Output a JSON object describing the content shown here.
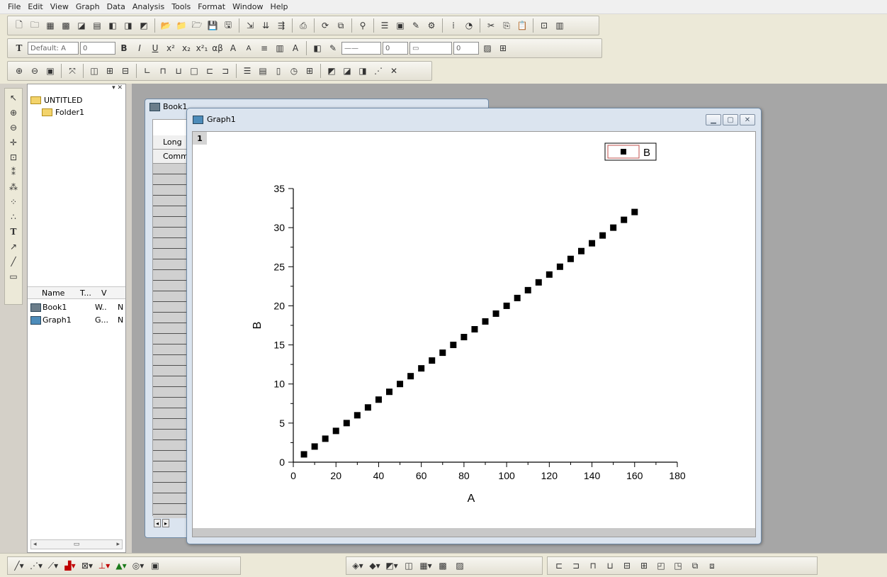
{
  "menu": [
    "File",
    "Edit",
    "View",
    "Graph",
    "Data",
    "Analysis",
    "Tools",
    "Format",
    "Window",
    "Help"
  ],
  "format_toolbar": {
    "font_combo": "Default: A",
    "size_combo": "0",
    "line_width_combo": "0",
    "border_combo": "0",
    "text_buttons": [
      "B",
      "I",
      "U",
      "x²",
      "x₂",
      "x²₁",
      "αβ",
      "A",
      "A"
    ]
  },
  "explorer": {
    "root": "UNTITLED",
    "folder": "Folder1",
    "columns": [
      "Name",
      "T...",
      "V"
    ],
    "items": [
      {
        "name": "Book1",
        "type": "W..",
        "view": "N"
      },
      {
        "name": "Graph1",
        "type": "G...",
        "view": "N"
      }
    ]
  },
  "book_window": {
    "title": "Book1",
    "row_labels": [
      "Long",
      "Comm"
    ]
  },
  "graph_window": {
    "title": "Graph1",
    "layer_label": "1",
    "legend_label": "B"
  },
  "chart_data": {
    "type": "scatter",
    "series": [
      {
        "name": "B",
        "x": [
          5,
          10,
          15,
          20,
          25,
          30,
          35,
          40,
          45,
          50,
          55,
          60,
          65,
          70,
          75,
          80,
          85,
          90,
          95,
          100,
          105,
          110,
          115,
          120,
          125,
          130,
          135,
          140,
          145,
          150,
          155,
          160
        ],
        "y": [
          1,
          2,
          3,
          4,
          5,
          6,
          7,
          8,
          9,
          10,
          11,
          12,
          13,
          14,
          15,
          16,
          17,
          18,
          19,
          20,
          21,
          22,
          23,
          24,
          25,
          26,
          27,
          28,
          29,
          30,
          31,
          32
        ]
      }
    ],
    "xlabel": "A",
    "ylabel": "B",
    "xlim": [
      0,
      180
    ],
    "ylim": [
      0,
      35
    ],
    "xticks": [
      0,
      20,
      40,
      60,
      80,
      100,
      120,
      140,
      160,
      180
    ],
    "yticks": [
      0,
      5,
      10,
      15,
      20,
      25,
      30,
      35
    ],
    "legend": "top-right",
    "grid": false,
    "marker": "square",
    "marker_color": "#000000"
  }
}
